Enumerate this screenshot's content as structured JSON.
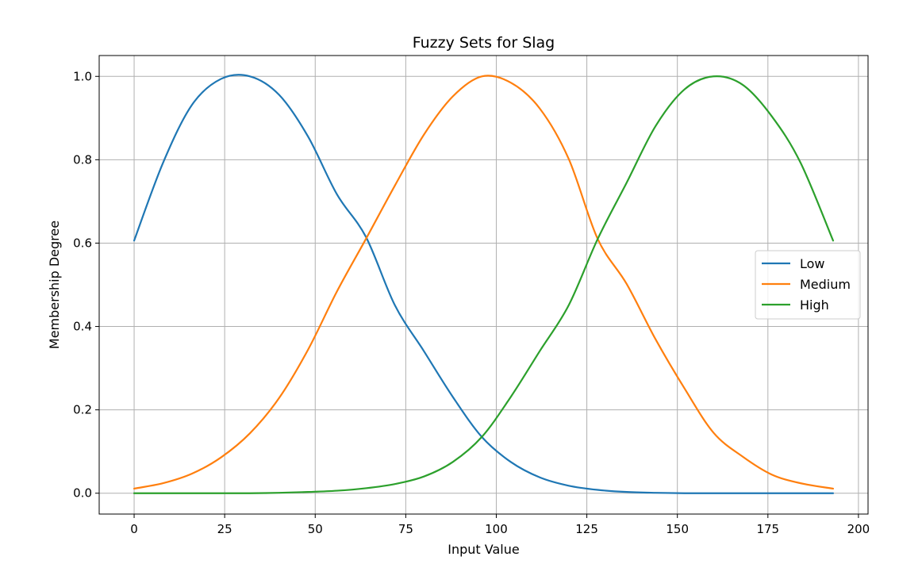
{
  "chart_data": {
    "type": "line",
    "title": "Fuzzy Sets for Slag",
    "xlabel": "Input Value",
    "ylabel": "Membership Degree",
    "xlim": [
      -9.65,
      202.65
    ],
    "ylim": [
      -0.05,
      1.05
    ],
    "xticks": [
      0,
      25,
      50,
      75,
      100,
      125,
      150,
      175,
      200
    ],
    "xtick_labels": [
      "0",
      "25",
      "50",
      "75",
      "100",
      "125",
      "150",
      "175",
      "200"
    ],
    "yticks": [
      0.0,
      0.2,
      0.4,
      0.6,
      0.8,
      1.0
    ],
    "ytick_labels": [
      "0.0",
      "0.2",
      "0.4",
      "0.6",
      "0.8",
      "1.0"
    ],
    "grid": true,
    "legend_position": "center-right",
    "x": [
      0,
      8,
      16,
      24,
      32,
      40,
      48,
      56,
      64,
      72,
      80,
      88,
      96,
      104,
      112,
      120,
      128,
      136,
      144,
      152,
      160,
      168,
      176,
      184,
      193
    ],
    "series": [
      {
        "name": "Low",
        "color": "#1f77b4",
        "values": [
          0.606,
          0.793,
          0.932,
          0.994,
          1.0,
          0.956,
          0.856,
          0.717,
          0.615,
          0.451,
          0.341,
          0.231,
          0.135,
          0.075,
          0.038,
          0.018,
          0.008,
          0.003,
          0.001,
          0.0,
          0.0,
          0.0,
          0.0,
          0.0,
          0.0
        ]
      },
      {
        "name": "Medium",
        "color": "#ff7f0e",
        "values": [
          0.011,
          0.024,
          0.047,
          0.086,
          0.144,
          0.228,
          0.344,
          0.484,
          0.61,
          0.738,
          0.86,
          0.952,
          1.0,
          0.985,
          0.923,
          0.802,
          0.61,
          0.502,
          0.369,
          0.251,
          0.145,
          0.088,
          0.045,
          0.024,
          0.011
        ]
      },
      {
        "name": "High",
        "color": "#2ca02c",
        "values": [
          0.0,
          0.0,
          0.0,
          0.0,
          0.0,
          0.001,
          0.003,
          0.006,
          0.012,
          0.022,
          0.04,
          0.075,
          0.135,
          0.231,
          0.341,
          0.451,
          0.61,
          0.745,
          0.881,
          0.969,
          1.0,
          0.98,
          0.905,
          0.793,
          0.606
        ]
      }
    ]
  }
}
